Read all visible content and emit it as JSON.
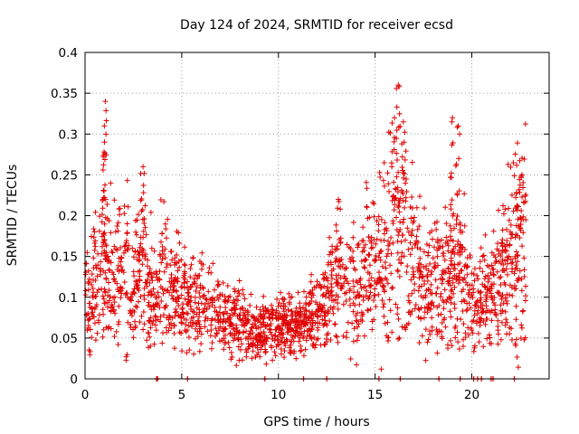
{
  "chart_data": {
    "type": "scatter",
    "title": "Day 124 of 2024, SRMTID for receiver ecsd",
    "xlabel": "GPS time / hours",
    "ylabel": "SRMTID / TECUs",
    "xlim": [
      0,
      24
    ],
    "ylim": [
      0,
      0.4
    ],
    "xticks": [
      0,
      5,
      10,
      15,
      20
    ],
    "xtick_labels": [
      "0",
      "5",
      "10",
      "15",
      "20"
    ],
    "yticks": [
      0,
      0.05,
      0.1,
      0.15,
      0.2,
      0.25,
      0.3,
      0.35,
      0.4
    ],
    "ytick_labels": [
      "0",
      "0.05",
      "0.1",
      "0.15",
      "0.2",
      "0.25",
      "0.3",
      "0.35",
      "0.4"
    ],
    "grid": true,
    "marker": "plus",
    "color": "#e00000",
    "series": [
      {
        "name": "SRMTID",
        "profile_hours": [
          0.0,
          0.5,
          1.0,
          1.5,
          2.0,
          2.5,
          3.0,
          3.5,
          4.0,
          4.5,
          5.0,
          5.5,
          6.0,
          6.5,
          7.0,
          7.5,
          8.0,
          8.5,
          9.0,
          9.5,
          10.0,
          10.5,
          11.0,
          11.5,
          12.0,
          12.5,
          13.0,
          13.5,
          14.0,
          14.5,
          15.0,
          15.5,
          16.0,
          16.5,
          17.0,
          17.5,
          18.0,
          18.5,
          19.0,
          19.5,
          20.0,
          20.5,
          21.0,
          21.5,
          22.0,
          22.5,
          22.8
        ],
        "profile_center": [
          0.1,
          0.12,
          0.13,
          0.12,
          0.14,
          0.11,
          0.13,
          0.1,
          0.12,
          0.11,
          0.1,
          0.09,
          0.09,
          0.085,
          0.08,
          0.07,
          0.07,
          0.065,
          0.06,
          0.06,
          0.065,
          0.07,
          0.06,
          0.07,
          0.09,
          0.1,
          0.11,
          0.12,
          0.12,
          0.13,
          0.14,
          0.16,
          0.17,
          0.16,
          0.13,
          0.12,
          0.12,
          0.12,
          0.12,
          0.13,
          0.1,
          0.1,
          0.11,
          0.12,
          0.15,
          0.16,
          0.16
        ],
        "peaks": [
          {
            "hour": 1.05,
            "value": 0.34
          },
          {
            "hour": 1.0,
            "value": 0.31
          },
          {
            "hour": 3.0,
            "value": 0.26
          },
          {
            "hour": 13.1,
            "value": 0.22
          },
          {
            "hour": 16.2,
            "value": 0.36
          },
          {
            "hour": 16.0,
            "value": 0.32
          },
          {
            "hour": 16.5,
            "value": 0.29
          },
          {
            "hour": 19.0,
            "value": 0.32
          },
          {
            "hour": 19.3,
            "value": 0.31
          },
          {
            "hour": 22.6,
            "value": 0.25
          }
        ]
      }
    ],
    "rug_hours": [
      3.7,
      3.75,
      5.3,
      9.3,
      11.3,
      12.5,
      15.2,
      16.3,
      18.3,
      19.4,
      20.1,
      20.3,
      20.5,
      21.0,
      21.1,
      22.2
    ]
  }
}
